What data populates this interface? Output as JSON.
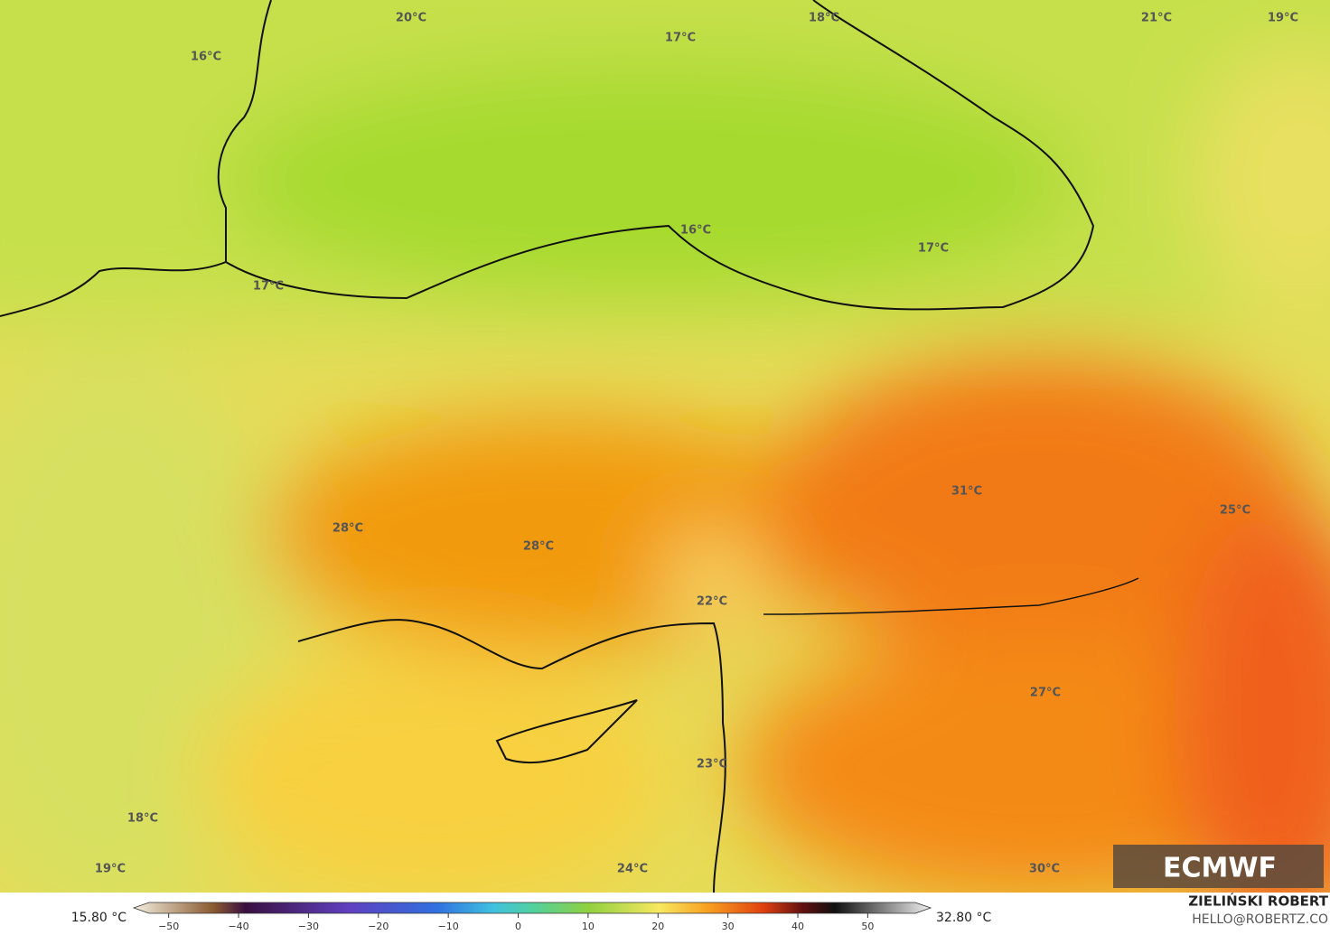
{
  "map": {
    "labels": [
      "20°C",
      "18°C",
      "21°C",
      "19°C",
      "17°C",
      "16°C",
      "16°C",
      "17°C",
      "17°C",
      "31°C",
      "25°C",
      "28°C",
      "28°C",
      "22°C",
      "27°C",
      "23°C",
      "18°C",
      "19°C",
      "24°C",
      "30°C"
    ]
  },
  "logo": "ECMWF",
  "colorbar": {
    "min_label": "15.80 °C",
    "max_label": "32.80 °C",
    "xlim": [
      -55,
      59
    ],
    "xticks": [
      {
        "value": -50,
        "label": "−50"
      },
      {
        "value": -40,
        "label": "−40"
      },
      {
        "value": -30,
        "label": "−30"
      },
      {
        "value": -20,
        "label": "−20"
      },
      {
        "value": -10,
        "label": "−10"
      },
      0,
      10,
      20,
      30,
      40,
      50
    ]
  },
  "credits": {
    "author": "ZIELIŃSKI ROBERT",
    "contact": "HELLO@ROBERTZ.CO"
  }
}
